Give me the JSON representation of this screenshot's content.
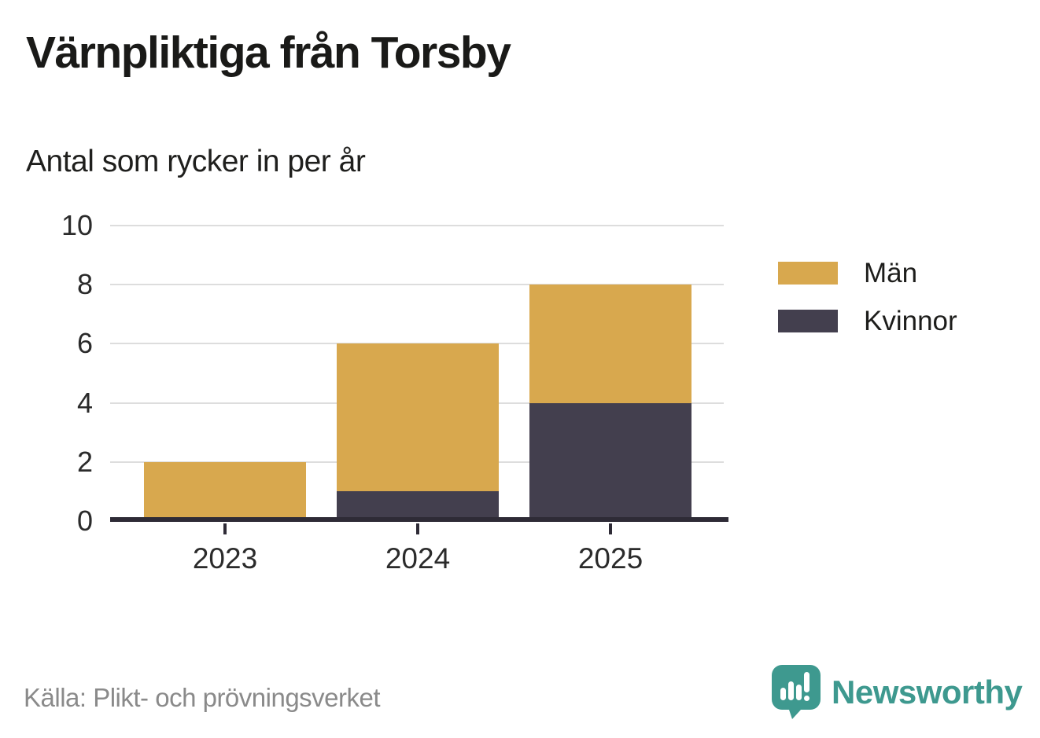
{
  "title": "Värnpliktiga från Torsby",
  "subtitle": "Antal som rycker in per år",
  "source": "Källa: Plikt- och prövningsverket",
  "branding": {
    "name": "Newsworthy",
    "color": "#3E998F"
  },
  "colors": {
    "men": "#D8A84E",
    "women": "#433F4E",
    "axis": "#2E2B36",
    "grid": "#DDDDDD",
    "text": "#1D1D1B",
    "muted": "#8A8A8A",
    "background": "#FFFFFF"
  },
  "chart_data": {
    "type": "bar",
    "stacked": true,
    "title": "Värnpliktiga från Torsby",
    "subtitle": "Antal som rycker in per år",
    "categories": [
      "2023",
      "2024",
      "2025"
    ],
    "series": [
      {
        "name": "Män",
        "color": "#D8A84E",
        "values": [
          2,
          5,
          4
        ]
      },
      {
        "name": "Kvinnor",
        "color": "#433F4E",
        "values": [
          0,
          1,
          4
        ]
      }
    ],
    "stack_order_bottom_to_top": [
      "Kvinnor",
      "Män"
    ],
    "totals": [
      2,
      6,
      8
    ],
    "ylim": [
      0,
      10
    ],
    "yticks": [
      0,
      2,
      4,
      6,
      8,
      10
    ],
    "grid": true,
    "legend_position": "right",
    "source_label": "Källa: Plikt- och prövningsverket"
  }
}
